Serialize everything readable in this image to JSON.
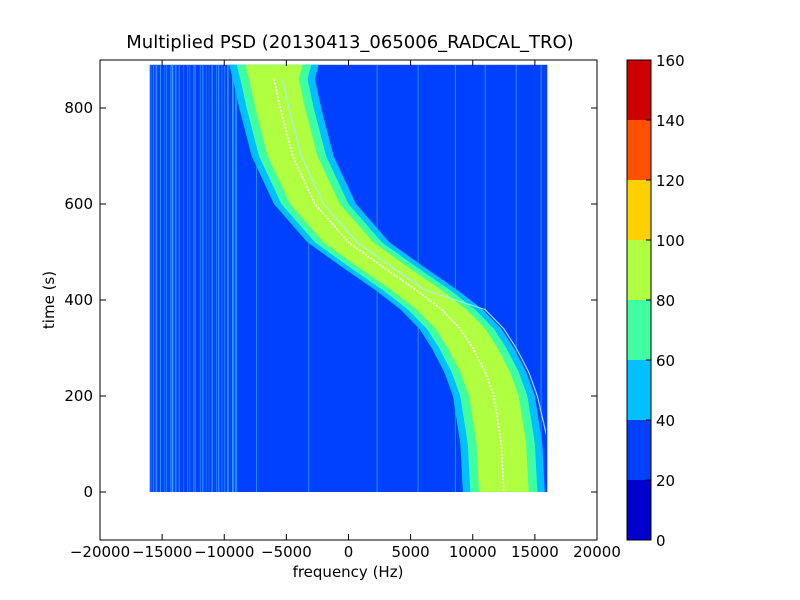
{
  "chart_data": {
    "type": "heatmap",
    "title": "Multiplied PSD (20130413_065006_RADCAL_TRO)",
    "xlabel": "frequency (Hz)",
    "ylabel": "time (s)",
    "xlim": [
      -20000,
      20000
    ],
    "ylim": [
      -100,
      900
    ],
    "x_ticks": [
      -20000,
      -15000,
      -10000,
      -5000,
      0,
      5000,
      10000,
      15000,
      20000
    ],
    "x_tick_labels": [
      "−20000",
      "−15000",
      "−10000",
      "−5000",
      "0",
      "5000",
      "10000",
      "15000",
      "20000"
    ],
    "y_ticks": [
      0,
      200,
      400,
      600,
      800
    ],
    "y_tick_labels": [
      "0",
      "200",
      "400",
      "600",
      "800"
    ],
    "data_extent": {
      "x": [
        -16000,
        16000
      ],
      "y": [
        0,
        890
      ]
    },
    "colorbar": {
      "levels": [
        0,
        20,
        40,
        60,
        80,
        100,
        120,
        140,
        160
      ],
      "labels": [
        "0",
        "20",
        "40",
        "60",
        "80",
        "100",
        "120",
        "140",
        "160"
      ],
      "colors": [
        "#0000cc",
        "#0040ff",
        "#00c0ff",
        "#40ffa0",
        "#b0ff40",
        "#ffd000",
        "#ff5000",
        "#cc0000"
      ],
      "placement": "right"
    },
    "background_level_color": "#0040ff",
    "signal_track": {
      "description_level_center": "80-100",
      "points": [
        {
          "t": 860,
          "f": -6000
        },
        {
          "t": 800,
          "f": -5500
        },
        {
          "t": 700,
          "f": -4500
        },
        {
          "t": 600,
          "f": -2700
        },
        {
          "t": 520,
          "f": 0
        },
        {
          "t": 470,
          "f": 2700
        },
        {
          "t": 420,
          "f": 5500
        },
        {
          "t": 380,
          "f": 7500
        },
        {
          "t": 340,
          "f": 9000
        },
        {
          "t": 300,
          "f": 10000
        },
        {
          "t": 250,
          "f": 11000
        },
        {
          "t": 200,
          "f": 11700
        },
        {
          "t": 100,
          "f": 12300
        },
        {
          "t": 0,
          "f": 12500
        }
      ],
      "half_widths_hz": {
        "green": 2000,
        "aqua": 2700,
        "cyan": 3300
      }
    },
    "grid": false
  }
}
